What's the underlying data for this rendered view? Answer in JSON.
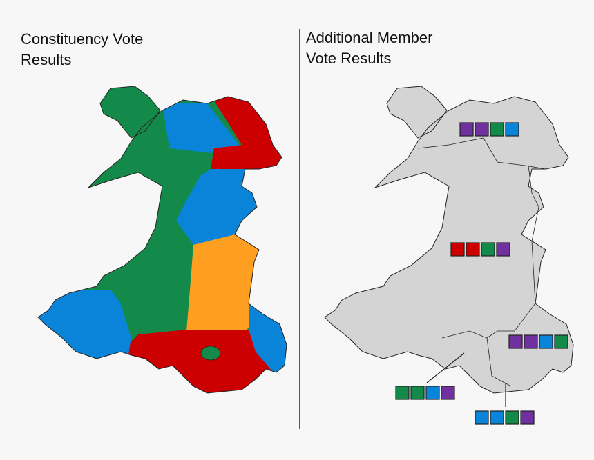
{
  "left_panel": {
    "title_lines": [
      "Constituency Vote",
      "Results"
    ]
  },
  "right_panel": {
    "title_lines": [
      "Additional Member",
      "Vote Results"
    ]
  }
}
